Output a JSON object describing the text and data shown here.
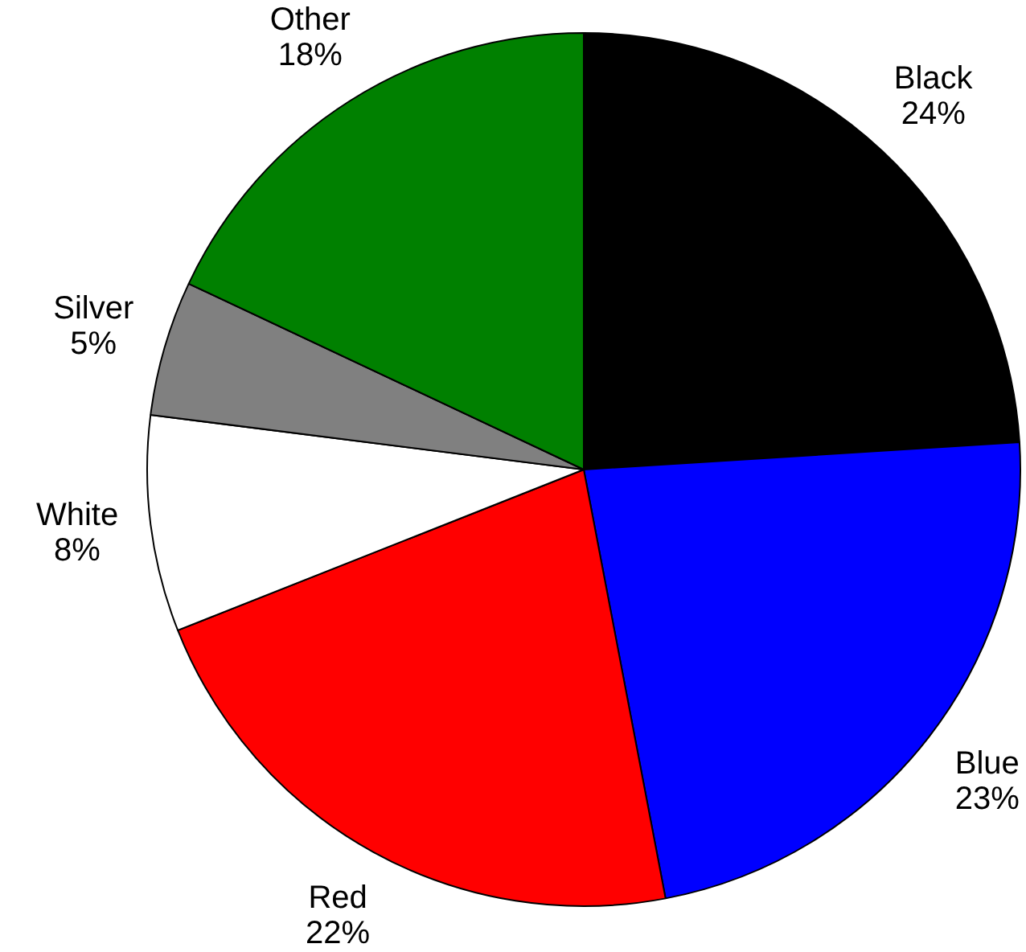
{
  "chart_data": {
    "type": "pie",
    "categories": [
      "Black",
      "Blue",
      "Red",
      "White",
      "Silver",
      "Other"
    ],
    "values": [
      24,
      23,
      22,
      8,
      5,
      18
    ],
    "value_labels": [
      "24%",
      "23%",
      "22%",
      "8%",
      "5%",
      "18%"
    ],
    "colors": [
      "#000000",
      "#0000ff",
      "#ff0000",
      "#ffffff",
      "#808080",
      "#008000"
    ],
    "legend": false
  }
}
